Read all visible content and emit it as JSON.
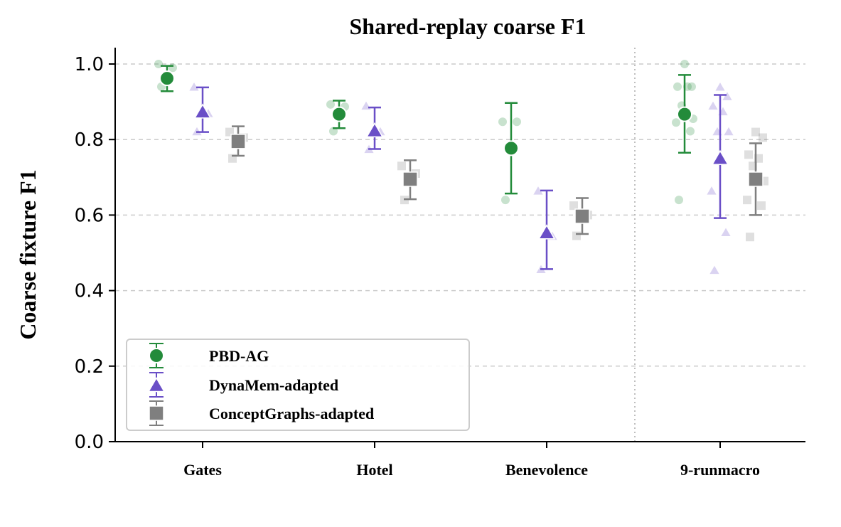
{
  "chart_data": {
    "type": "scatter",
    "title": "Shared-replay coarse F1",
    "xlabel": "",
    "ylabel": "Coarse fixture F1",
    "ylim": [
      0.0,
      1.04
    ],
    "yticks": [
      "0.0",
      "0.2",
      "0.4",
      "0.6",
      "0.8",
      "1.0"
    ],
    "categories": [
      "Gates",
      "Hotel",
      "Benevolence",
      "9-runmacro"
    ],
    "grid": "horizontal-dashed",
    "separator_after_category": 2,
    "legend_position": "lower-left",
    "series": [
      {
        "name": "PBD-AG",
        "marker": "circle",
        "color": "#238b3a",
        "means": [
          0.962,
          0.867,
          0.777,
          0.867
        ],
        "err_low": [
          0.928,
          0.83,
          0.657,
          0.765
        ],
        "err_high": [
          0.995,
          0.903,
          0.897,
          0.971
        ],
        "runs": [
          [
            0.94,
            0.99,
            1.0
          ],
          [
            0.822,
            0.887,
            0.893
          ],
          [
            0.64,
            0.847,
            0.847
          ],
          [
            0.64,
            0.822,
            0.845,
            0.855,
            0.89,
            0.94,
            0.94,
            0.94,
            1.0
          ]
        ]
      },
      {
        "name": "DynaMem-adapted",
        "marker": "triangle",
        "color": "#6a4fc7",
        "means": [
          0.875,
          0.825,
          0.555,
          0.752
        ],
        "err_low": [
          0.82,
          0.775,
          0.457,
          0.592
        ],
        "err_high": [
          0.938,
          0.885,
          0.665,
          0.918
        ],
        "runs": [
          [
            0.822,
            0.87,
            0.94
          ],
          [
            0.775,
            0.822,
            0.89
          ],
          [
            0.457,
            0.545,
            0.665
          ],
          [
            0.455,
            0.555,
            0.665,
            0.822,
            0.822,
            0.875,
            0.89,
            0.915,
            0.94
          ]
        ]
      },
      {
        "name": "ConceptGraphs-adapted",
        "marker": "square",
        "color": "#7f7f7f",
        "means": [
          0.795,
          0.695,
          0.597,
          0.695
        ],
        "err_low": [
          0.757,
          0.642,
          0.55,
          0.6
        ],
        "err_high": [
          0.835,
          0.745,
          0.645,
          0.79
        ],
        "runs": [
          [
            0.75,
            0.805,
            0.82
          ],
          [
            0.64,
            0.71,
            0.73
          ],
          [
            0.545,
            0.6,
            0.625
          ],
          [
            0.542,
            0.625,
            0.64,
            0.69,
            0.73,
            0.75,
            0.76,
            0.805,
            0.82
          ]
        ]
      }
    ]
  }
}
